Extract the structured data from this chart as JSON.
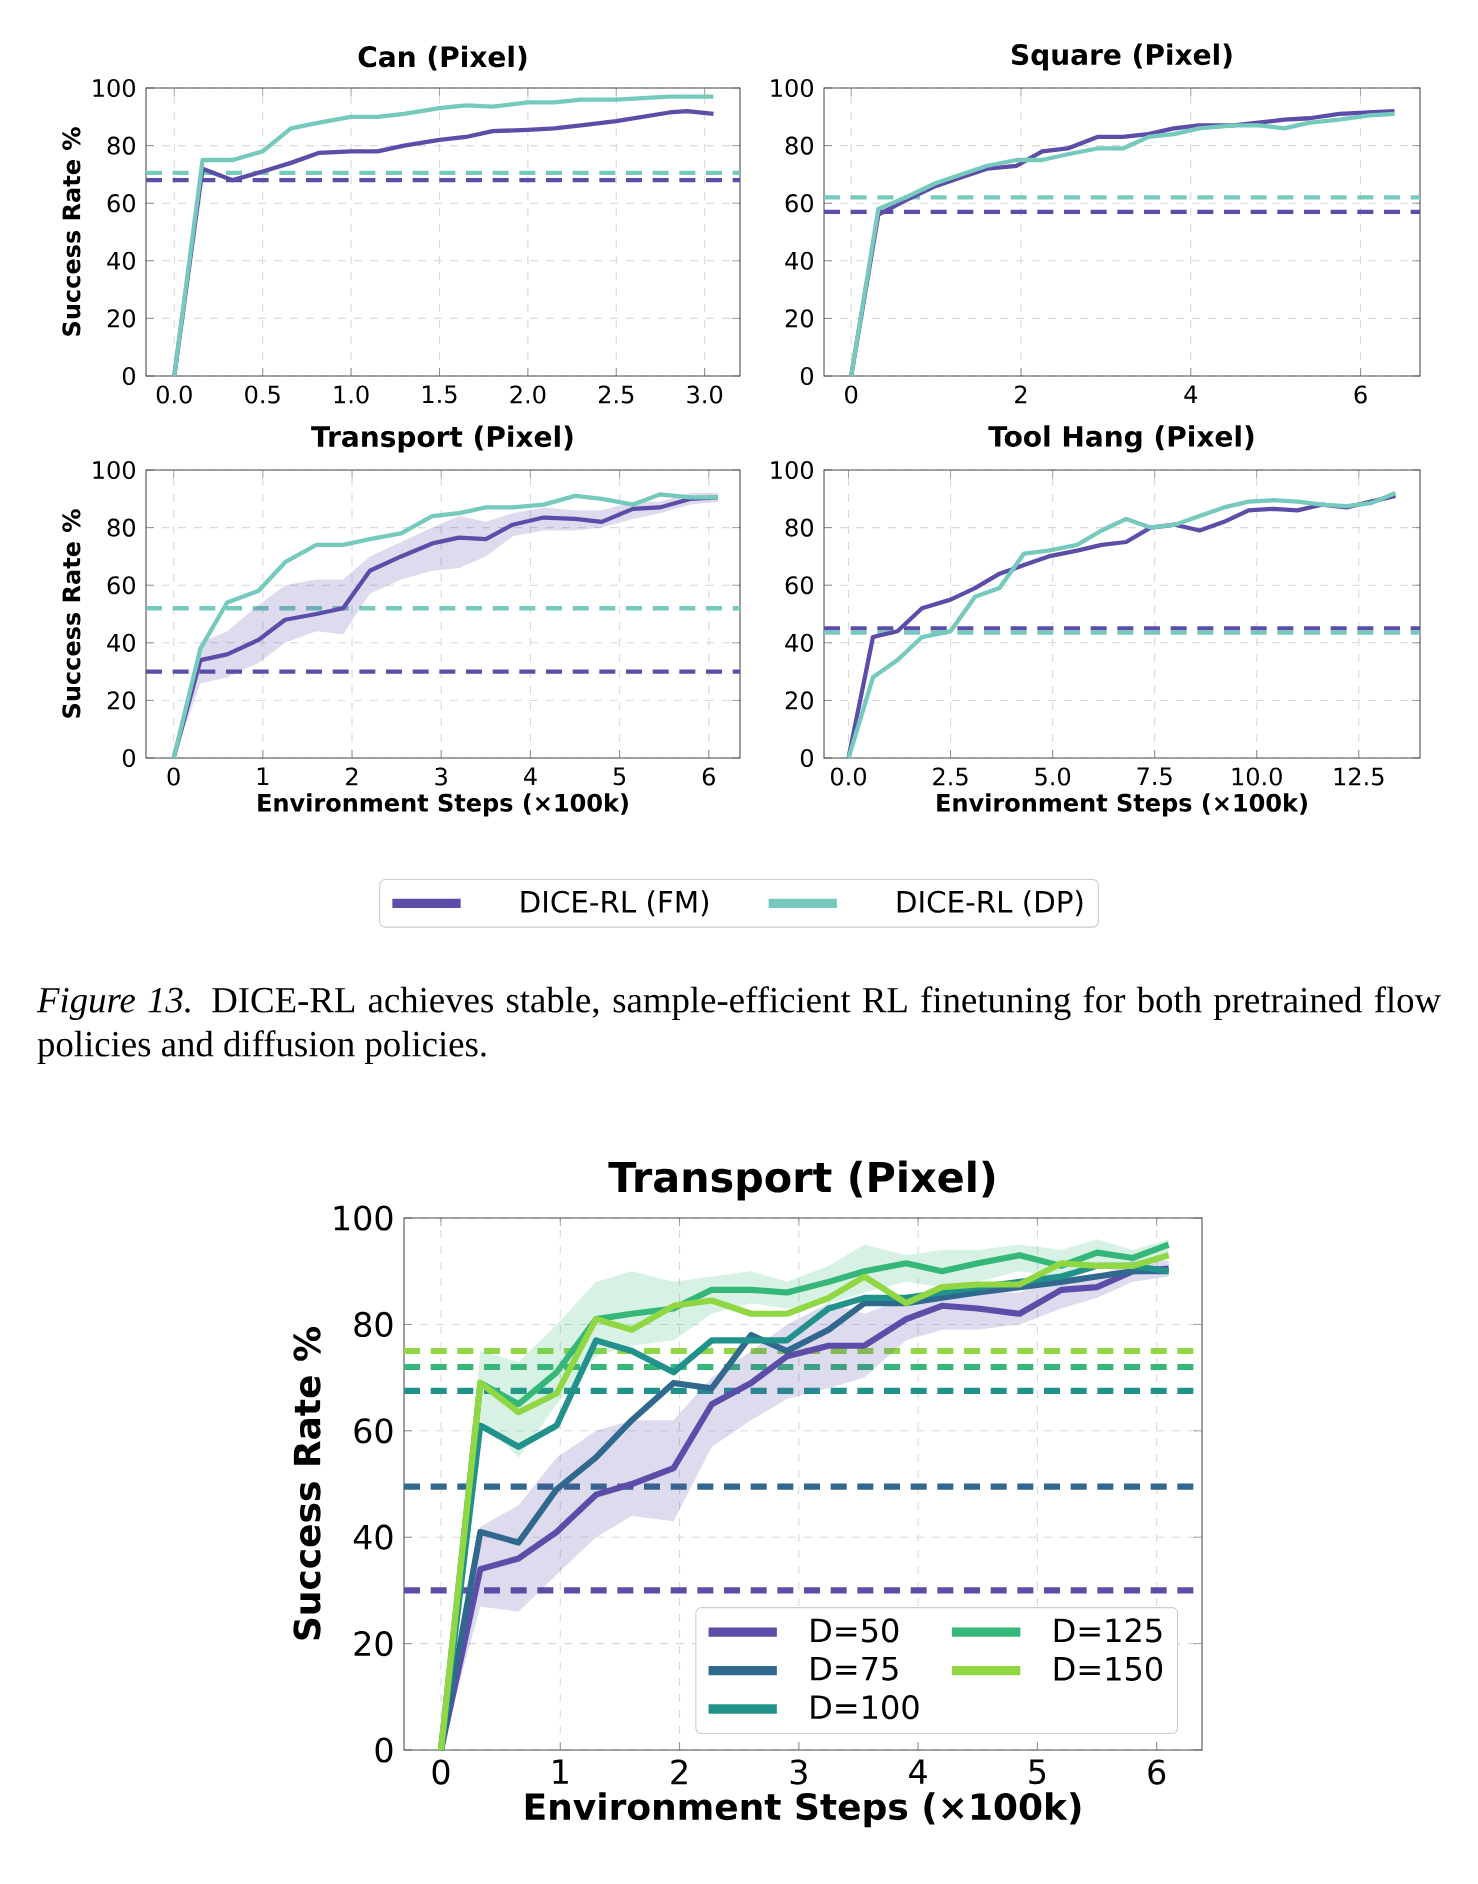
{
  "chart_data": [
    {
      "type": "line",
      "title": "Can (Pixel)",
      "ylabel": "Success Rate %",
      "xlim": [
        -0.16,
        3.2
      ],
      "ylim": [
        0,
        100
      ],
      "xticks": [
        {
          "value": 0,
          "label": "0.0"
        },
        {
          "value": 0.5,
          "label": "0.5"
        },
        {
          "value": 1,
          "label": "1.0"
        },
        {
          "value": 1.5,
          "label": "1.5"
        },
        {
          "value": 2,
          "label": "2.0"
        },
        {
          "value": 2.5,
          "label": "2.5"
        },
        {
          "value": 3,
          "label": "3.0"
        }
      ],
      "yticks": [
        0,
        20,
        40,
        60,
        80,
        100
      ],
      "grid": true,
      "series": [
        {
          "color": "#5c4da8",
          "x": [
            0,
            0.16,
            0.33,
            0.5,
            0.66,
            0.82,
            1.0,
            1.15,
            1.3,
            1.5,
            1.65,
            1.8,
            2.0,
            2.15,
            2.3,
            2.5,
            2.65,
            2.8,
            2.9,
            3.05
          ],
          "values": [
            0,
            72,
            68,
            71,
            74,
            77.5,
            78,
            78,
            80,
            82,
            83,
            85,
            85.5,
            86,
            87,
            88.5,
            90,
            91.5,
            92,
            91
          ]
        },
        {
          "color": "#76c9bd",
          "x": [
            0,
            0.16,
            0.33,
            0.5,
            0.66,
            0.82,
            1.0,
            1.15,
            1.3,
            1.5,
            1.65,
            1.8,
            2.0,
            2.15,
            2.3,
            2.5,
            2.65,
            2.8,
            3.05
          ],
          "values": [
            0,
            75,
            75,
            78,
            86,
            88,
            90,
            90,
            91,
            93,
            94,
            93.5,
            95,
            95,
            96,
            96,
            96.5,
            97,
            97
          ]
        }
      ],
      "ref_lines": [
        {
          "axis": "y",
          "value": 70.5,
          "color": "#76c9bd",
          "line_style": "dashed"
        },
        {
          "axis": "y",
          "value": 68,
          "color": "#5c4da8",
          "line_style": "dashed"
        }
      ]
    },
    {
      "type": "line",
      "title": "Square (Pixel)",
      "xlim": [
        -0.32,
        6.7
      ],
      "ylim": [
        0,
        100
      ],
      "xticks": [
        0,
        2,
        4,
        6
      ],
      "yticks": [
        0,
        20,
        40,
        60,
        80,
        100
      ],
      "grid": true,
      "series": [
        {
          "color": "#5c4da8",
          "x": [
            0,
            0.32,
            0.64,
            1.0,
            1.3,
            1.6,
            1.95,
            2.25,
            2.55,
            2.9,
            3.2,
            3.5,
            3.8,
            4.1,
            4.5,
            4.8,
            5.1,
            5.4,
            5.75,
            6.1,
            6.4
          ],
          "values": [
            0,
            56,
            61,
            66,
            69,
            72,
            73,
            78,
            79,
            83,
            83,
            84,
            86,
            87,
            87,
            88,
            89,
            89.5,
            91,
            91.5,
            92
          ]
        },
        {
          "color": "#76c9bd",
          "x": [
            0,
            0.32,
            0.64,
            1.0,
            1.3,
            1.6,
            1.95,
            2.25,
            2.55,
            2.9,
            3.2,
            3.5,
            3.8,
            4.1,
            4.5,
            4.8,
            5.1,
            5.4,
            5.75,
            6.1,
            6.4
          ],
          "values": [
            0,
            58,
            62,
            67,
            70,
            73,
            75,
            75,
            77,
            79,
            79,
            83,
            84,
            86,
            87,
            87,
            86,
            88,
            89,
            90.5,
            91
          ]
        }
      ],
      "ref_lines": [
        {
          "axis": "y",
          "value": 62,
          "color": "#76c9bd",
          "line_style": "dashed"
        },
        {
          "axis": "y",
          "value": 57,
          "color": "#5c4da8",
          "line_style": "dashed"
        }
      ]
    },
    {
      "type": "line",
      "title": "Transport (Pixel)",
      "xlabel": "Environment Steps (×100k)",
      "ylabel": "Success Rate %",
      "xlim": [
        -0.31,
        6.35
      ],
      "ylim": [
        0,
        100
      ],
      "xticks": [
        0,
        1,
        2,
        3,
        4,
        5,
        6
      ],
      "yticks": [
        0,
        20,
        40,
        60,
        80,
        100
      ],
      "grid": true,
      "legend": "bottom",
      "series": [
        {
          "name": "DICE-RL (FM)",
          "color": "#5c4da8",
          "x": [
            0,
            0.3,
            0.6,
            0.95,
            1.25,
            1.6,
            1.9,
            2.2,
            2.55,
            2.9,
            3.2,
            3.5,
            3.8,
            4.15,
            4.5,
            4.8,
            5.15,
            5.45,
            5.8,
            6.1
          ],
          "values": [
            0,
            34,
            36,
            41,
            48,
            50,
            52,
            65,
            70,
            74.5,
            76.5,
            76,
            81,
            83.5,
            83,
            82,
            86.5,
            87,
            90,
            90.5
          ],
          "lower": [
            0,
            26,
            28,
            33,
            40,
            44,
            43,
            57,
            62,
            65,
            66,
            70,
            77,
            79,
            79,
            80,
            83,
            85,
            88,
            89
          ],
          "upper": [
            0,
            40,
            44,
            53,
            60,
            62,
            62,
            70,
            75,
            80,
            84,
            82,
            85,
            87,
            86,
            86,
            89,
            89,
            92,
            92
          ]
        },
        {
          "name": "DICE-RL (DP)",
          "color": "#76c9bd",
          "x": [
            0,
            0.3,
            0.6,
            0.95,
            1.25,
            1.6,
            1.9,
            2.2,
            2.55,
            2.9,
            3.2,
            3.5,
            3.8,
            4.15,
            4.5,
            4.8,
            5.15,
            5.45,
            5.8,
            6.1
          ],
          "values": [
            0,
            38,
            54,
            58,
            68,
            74,
            74,
            76,
            78,
            84,
            85,
            87,
            87,
            88,
            91,
            90,
            88,
            91.5,
            90.5,
            90.5
          ]
        }
      ],
      "ref_lines": [
        {
          "axis": "y",
          "value": 52,
          "color": "#76c9bd",
          "line_style": "dashed"
        },
        {
          "axis": "y",
          "value": 30,
          "color": "#5c4da8",
          "line_style": "dashed"
        }
      ],
      "annotations": [
        "*Figure 13.* DICE-RL achieves stable, sample-efficient RL finetuning for both pretrained flow policies and diffusion policies."
      ]
    },
    {
      "type": "line",
      "title": "Tool Hang (Pixel)",
      "xlabel": "Environment Steps (×100k)",
      "xlim": [
        -0.6,
        14.0
      ],
      "ylim": [
        0,
        100
      ],
      "xticks": [
        {
          "value": 0,
          "label": "0.0"
        },
        2.5,
        {
          "value": 5,
          "label": "5.0"
        },
        7.5,
        {
          "value": 10,
          "label": "10.0"
        },
        12.5
      ],
      "yticks": [
        0,
        20,
        40,
        60,
        80,
        100
      ],
      "grid": true,
      "series": [
        {
          "color": "#5c4da8",
          "x": [
            0,
            0.6,
            1.2,
            1.8,
            2.5,
            3.1,
            3.7,
            4.3,
            4.9,
            5.6,
            6.2,
            6.8,
            7.4,
            8.0,
            8.6,
            9.2,
            9.8,
            10.4,
            11.0,
            11.6,
            12.2,
            12.8,
            13.4
          ],
          "values": [
            0,
            42,
            44,
            52,
            55,
            59,
            64,
            67,
            70,
            72,
            74,
            75,
            80,
            81,
            79,
            82,
            86,
            86.5,
            86,
            88,
            87,
            89,
            91
          ]
        },
        {
          "color": "#76c9bd",
          "x": [
            0,
            0.6,
            1.2,
            1.8,
            2.5,
            3.1,
            3.7,
            4.3,
            4.9,
            5.6,
            6.2,
            6.8,
            7.4,
            8.0,
            8.6,
            9.2,
            9.8,
            10.4,
            11.0,
            11.6,
            12.2,
            12.8,
            13.4
          ],
          "values": [
            0,
            28,
            34,
            42,
            44,
            56,
            59,
            71,
            72,
            74,
            79,
            83,
            80,
            81,
            84,
            87,
            89,
            89.5,
            89,
            88,
            87.5,
            88.5,
            92
          ]
        }
      ],
      "ref_lines": [
        {
          "axis": "y",
          "value": 45,
          "color": "#5c4da8",
          "line_style": "dashed"
        },
        {
          "axis": "y",
          "value": 43.5,
          "color": "#76c9bd",
          "line_style": "dashed"
        }
      ]
    },
    {
      "type": "line",
      "title": "Transport (Pixel)",
      "xlabel": "Environment Steps (×100k)",
      "ylabel": "Success Rate %",
      "xlim": [
        -0.31,
        6.38
      ],
      "ylim": [
        0,
        100
      ],
      "xticks": [
        0,
        1,
        2,
        3,
        4,
        5,
        6
      ],
      "yticks": [
        0,
        20,
        40,
        60,
        80,
        100
      ],
      "grid": true,
      "legend": "bottom right",
      "x": [
        0,
        0.33,
        0.65,
        0.97,
        1.3,
        1.6,
        1.95,
        2.27,
        2.6,
        2.9,
        3.25,
        3.55,
        3.9,
        4.2,
        4.5,
        4.85,
        5.2,
        5.5,
        5.8,
        6.1
      ],
      "series": [
        {
          "name": "D=50",
          "color": "#5c4da8",
          "values": [
            0,
            34,
            36,
            41,
            48,
            50,
            53,
            65,
            69,
            74,
            76,
            76,
            81,
            83.5,
            83,
            82,
            86.5,
            87,
            90,
            90.5
          ],
          "lower": [
            0,
            27,
            26,
            33,
            40,
            44,
            43,
            57,
            62,
            66,
            68,
            70,
            77,
            79,
            79,
            80,
            83,
            85,
            88,
            89
          ],
          "upper": [
            0,
            42,
            46,
            55,
            60,
            62,
            62,
            70,
            75,
            80,
            84,
            82,
            85,
            87,
            86,
            86,
            89,
            89,
            92,
            92
          ]
        },
        {
          "name": "D=75",
          "color": "#31688e",
          "values": [
            0,
            41,
            39,
            49,
            55,
            62,
            69,
            68,
            78,
            75,
            79,
            84,
            84,
            85,
            86,
            87,
            88,
            89,
            90,
            90
          ]
        },
        {
          "name": "D=100",
          "color": "#21918c",
          "values": [
            0,
            61,
            57,
            61,
            77,
            75,
            71,
            77,
            77,
            77,
            83,
            85,
            85,
            86,
            87,
            88,
            89,
            91,
            91,
            90
          ]
        },
        {
          "name": "D=125",
          "color": "#35b779",
          "values": [
            0,
            69,
            65,
            71,
            81,
            82,
            83,
            86.5,
            86.5,
            86,
            88,
            90,
            91.5,
            90,
            91.5,
            93,
            91,
            93.5,
            92.5,
            95
          ],
          "lower": [
            0,
            62,
            55,
            65,
            74,
            76,
            77,
            82,
            84,
            83,
            84,
            86,
            88,
            87,
            88,
            90,
            89,
            91,
            91,
            93
          ],
          "upper": [
            0,
            75,
            73,
            80,
            88,
            90,
            88,
            89,
            90,
            88,
            91,
            95,
            93,
            94,
            94,
            95,
            94,
            96,
            94,
            96
          ]
        },
        {
          "name": "D=150",
          "color": "#90d743",
          "values": [
            0,
            69,
            63.5,
            67,
            81,
            79,
            83.5,
            84.5,
            82,
            82,
            85,
            89,
            84,
            87,
            87.5,
            87.5,
            91.5,
            91,
            91,
            93
          ]
        }
      ],
      "ref_lines": [
        {
          "axis": "y",
          "value": 75,
          "color": "#90d743",
          "line_style": "dashed"
        },
        {
          "axis": "y",
          "value": 72,
          "color": "#35b779",
          "line_style": "dashed"
        },
        {
          "axis": "y",
          "value": 67.5,
          "color": "#21918c",
          "line_style": "dashed"
        },
        {
          "axis": "y",
          "value": 49.5,
          "color": "#31688e",
          "line_style": "dashed"
        },
        {
          "axis": "y",
          "value": 30,
          "color": "#5c4da8",
          "line_style": "dashed"
        }
      ]
    }
  ]
}
